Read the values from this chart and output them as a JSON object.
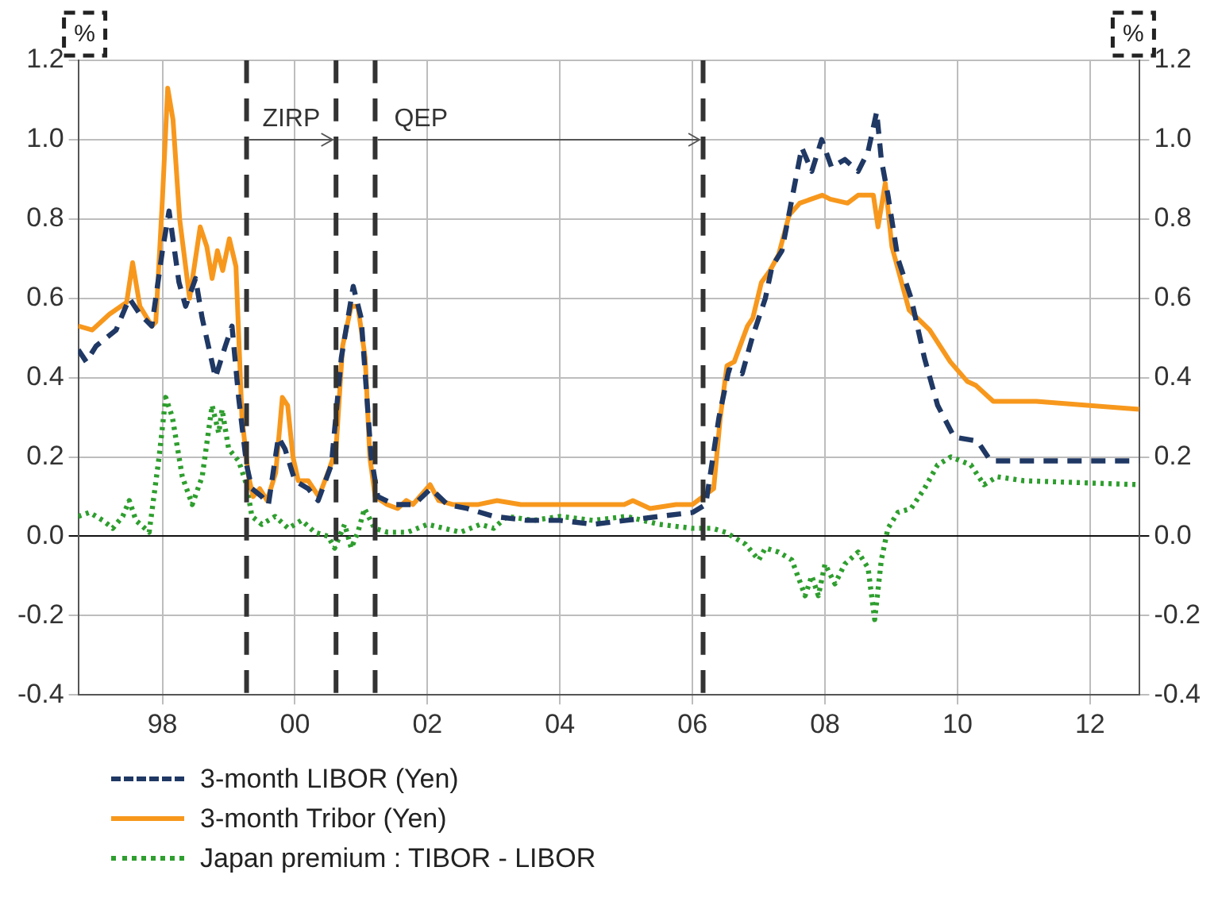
{
  "chart_data": {
    "type": "line",
    "ylabel": "%",
    "y2label": "%",
    "xlim": [
      1996.73,
      2012.75
    ],
    "xticks": [
      {
        "value": 1998,
        "label": "98"
      },
      {
        "value": 2000,
        "label": "00"
      },
      {
        "value": 2002,
        "label": "02"
      },
      {
        "value": 2004,
        "label": "04"
      },
      {
        "value": 2006,
        "label": "06"
      },
      {
        "value": 2008,
        "label": "08"
      },
      {
        "value": 2010,
        "label": "10"
      },
      {
        "value": 2012,
        "label": "12"
      }
    ],
    "ylim": [
      -0.4,
      1.2
    ],
    "yticks": [
      {
        "value": -0.4,
        "label": "-0.4"
      },
      {
        "value": -0.2,
        "label": "-0.2"
      },
      {
        "value": 0,
        "label": "0.0"
      },
      {
        "value": 0.2,
        "label": "0.2"
      },
      {
        "value": 0.4,
        "label": "0.4"
      },
      {
        "value": 0.6,
        "label": "0.6"
      },
      {
        "value": 0.8,
        "label": "0.8"
      },
      {
        "value": 1,
        "label": "1.0"
      },
      {
        "value": 1.2,
        "label": "1.2"
      }
    ],
    "y2lim": [
      -0.4,
      1.2
    ],
    "y2ticks": [
      {
        "value": -0.4,
        "label": "-0.4"
      },
      {
        "value": -0.2,
        "label": "-0.2"
      },
      {
        "value": 0,
        "label": "0.0"
      },
      {
        "value": 0.2,
        "label": "0.2"
      },
      {
        "value": 0.4,
        "label": "0.4"
      },
      {
        "value": 0.6,
        "label": "0.6"
      },
      {
        "value": 0.8,
        "label": "0.8"
      },
      {
        "value": 1,
        "label": "1.0"
      },
      {
        "value": 1.2,
        "label": "1.2"
      }
    ],
    "grid": true,
    "legend": "bottom",
    "marker": "none",
    "ref_lines": [
      {
        "axis": "x",
        "value": 1999.27,
        "color": "#333333",
        "line_style": "dashed"
      },
      {
        "axis": "x",
        "value": 2000.62,
        "color": "#333333",
        "line_style": "dashed"
      },
      {
        "axis": "x",
        "value": 2001.21,
        "color": "#333333",
        "line_style": "dashed"
      },
      {
        "axis": "x",
        "value": 2006.16,
        "color": "#333333",
        "line_style": "dashed"
      }
    ],
    "annotations": [
      {
        "text": "ZIRP",
        "x": 2000.62,
        "y": 1.0
      },
      {
        "text": "QEP",
        "x": 2006.16,
        "y": 1.0
      }
    ],
    "series": [
      {
        "name": "3-month LIBOR (Yen)",
        "color": "#1f3864",
        "line_style": "dashed",
        "x": [
          1996.73,
          1996.85,
          1997.0,
          1997.3,
          1997.5,
          1997.66,
          1997.84,
          1998.0,
          1998.1,
          1998.25,
          1998.35,
          1998.5,
          1998.6,
          1998.8,
          1998.95,
          1999.05,
          1999.15,
          1999.27,
          1999.35,
          1999.5,
          1999.6,
          1999.75,
          1999.85,
          2000.0,
          2000.2,
          2000.35,
          2000.55,
          2000.7,
          2000.88,
          2001.0,
          2001.15,
          2001.25,
          2001.5,
          2001.8,
          2002.05,
          2002.3,
          2002.6,
          2003.0,
          2003.5,
          2004.0,
          2004.5,
          2005.0,
          2005.5,
          2006.0,
          2006.2,
          2006.4,
          2006.55,
          2006.75,
          2006.9,
          2007.1,
          2007.2,
          2007.35,
          2007.5,
          2007.65,
          2007.8,
          2007.95,
          2008.1,
          2008.3,
          2008.5,
          2008.65,
          2008.78,
          2008.85,
          2008.95,
          2009.1,
          2009.3,
          2009.5,
          2009.7,
          2009.95,
          2010.3,
          2010.5,
          2010.7,
          2011.2,
          2012.74
        ],
        "values": [
          0.47,
          0.44,
          0.48,
          0.52,
          0.6,
          0.56,
          0.53,
          0.72,
          0.82,
          0.64,
          0.58,
          0.65,
          0.55,
          0.4,
          0.48,
          0.53,
          0.35,
          0.18,
          0.12,
          0.1,
          0.08,
          0.25,
          0.22,
          0.14,
          0.12,
          0.09,
          0.18,
          0.45,
          0.63,
          0.55,
          0.2,
          0.1,
          0.08,
          0.08,
          0.12,
          0.08,
          0.07,
          0.05,
          0.04,
          0.04,
          0.03,
          0.04,
          0.05,
          0.06,
          0.08,
          0.3,
          0.42,
          0.41,
          0.5,
          0.6,
          0.68,
          0.72,
          0.85,
          0.98,
          0.92,
          1.0,
          0.93,
          0.95,
          0.92,
          0.97,
          1.07,
          0.95,
          0.86,
          0.7,
          0.6,
          0.45,
          0.33,
          0.25,
          0.24,
          0.19,
          0.19,
          0.19,
          0.19
        ]
      },
      {
        "name": "3-month Tribor (Yen)",
        "color": "#f7981d",
        "line_style": "solid",
        "x": [
          1996.73,
          1996.94,
          1997.2,
          1997.46,
          1997.55,
          1997.66,
          1997.84,
          1997.9,
          1998.0,
          1998.08,
          1998.16,
          1998.26,
          1998.41,
          1998.57,
          1998.67,
          1998.75,
          1998.83,
          1998.91,
          1999.01,
          1999.11,
          1999.2,
          1999.3,
          1999.37,
          1999.47,
          1999.58,
          1999.71,
          1999.81,
          1999.89,
          1999.97,
          2000.05,
          2000.2,
          2000.36,
          2000.52,
          2000.62,
          2000.72,
          2000.85,
          2000.95,
          2001.06,
          2001.13,
          2001.21,
          2001.39,
          2001.55,
          2001.68,
          2001.78,
          2002.04,
          2002.17,
          2002.38,
          2002.77,
          2003.05,
          2003.41,
          2003.94,
          2004.45,
          2004.97,
          2005.1,
          2005.36,
          2005.75,
          2006.0,
          2006.16,
          2006.32,
          2006.42,
          2006.52,
          2006.63,
          2006.83,
          2006.91,
          2007.04,
          2007.17,
          2007.3,
          2007.46,
          2007.62,
          2007.96,
          2008.08,
          2008.34,
          2008.5,
          2008.73,
          2008.8,
          2008.91,
          2009.01,
          2009.27,
          2009.58,
          2009.89,
          2010.15,
          2010.28,
          2010.54,
          2011.19,
          2011.96,
          2012.74
        ],
        "values": [
          0.53,
          0.52,
          0.56,
          0.59,
          0.69,
          0.58,
          0.53,
          0.54,
          0.85,
          1.13,
          1.05,
          0.8,
          0.6,
          0.78,
          0.73,
          0.65,
          0.72,
          0.67,
          0.75,
          0.68,
          0.3,
          0.15,
          0.1,
          0.12,
          0.09,
          0.16,
          0.35,
          0.33,
          0.2,
          0.14,
          0.14,
          0.1,
          0.17,
          0.22,
          0.48,
          0.58,
          0.58,
          0.45,
          0.2,
          0.1,
          0.08,
          0.07,
          0.09,
          0.08,
          0.13,
          0.09,
          0.08,
          0.08,
          0.09,
          0.08,
          0.08,
          0.08,
          0.08,
          0.09,
          0.07,
          0.08,
          0.08,
          0.1,
          0.12,
          0.3,
          0.43,
          0.44,
          0.53,
          0.55,
          0.64,
          0.67,
          0.71,
          0.81,
          0.84,
          0.86,
          0.85,
          0.84,
          0.86,
          0.86,
          0.78,
          0.89,
          0.73,
          0.57,
          0.52,
          0.44,
          0.39,
          0.38,
          0.34,
          0.34,
          0.33,
          0.32
        ]
      },
      {
        "name": "Japan premium : TIBOR - LIBOR",
        "color": "#2e9e2e",
        "line_style": "dotted",
        "x": [
          1996.73,
          1996.9,
          1997.1,
          1997.25,
          1997.4,
          1997.5,
          1997.6,
          1997.8,
          1997.95,
          1998.05,
          1998.15,
          1998.3,
          1998.45,
          1998.6,
          1998.75,
          1998.85,
          1998.9,
          1999.0,
          1999.15,
          1999.27,
          1999.35,
          1999.5,
          1999.7,
          1999.9,
          2000.1,
          2000.3,
          2000.5,
          2000.6,
          2000.75,
          2000.85,
          2000.95,
          2001.05,
          2001.2,
          2001.4,
          2001.7,
          2002.0,
          2002.5,
          2002.8,
          2003.0,
          2003.2,
          2003.6,
          2004.0,
          2004.5,
          2005.0,
          2005.5,
          2006.0,
          2006.3,
          2006.5,
          2006.8,
          2007.0,
          2007.1,
          2007.3,
          2007.5,
          2007.7,
          2007.8,
          2007.9,
          2008.0,
          2008.15,
          2008.3,
          2008.5,
          2008.65,
          2008.75,
          2008.85,
          2008.95,
          2009.1,
          2009.3,
          2009.5,
          2009.7,
          2009.9,
          2010.2,
          2010.4,
          2010.6,
          2011.0,
          2012.74
        ],
        "values": [
          0.05,
          0.06,
          0.04,
          0.02,
          0.05,
          0.09,
          0.04,
          0.01,
          0.2,
          0.35,
          0.3,
          0.15,
          0.08,
          0.15,
          0.33,
          0.26,
          0.32,
          0.22,
          0.19,
          0.13,
          0.05,
          0.03,
          0.05,
          0.02,
          0.04,
          0.01,
          0.0,
          -0.03,
          0.03,
          -0.03,
          0.01,
          0.07,
          0.02,
          0.01,
          0.01,
          0.03,
          0.01,
          0.03,
          0.02,
          0.05,
          0.04,
          0.05,
          0.04,
          0.05,
          0.03,
          0.02,
          0.02,
          0.01,
          -0.02,
          -0.06,
          -0.03,
          -0.04,
          -0.06,
          -0.15,
          -0.1,
          -0.15,
          -0.07,
          -0.12,
          -0.07,
          -0.04,
          -0.08,
          -0.21,
          -0.06,
          0.02,
          0.06,
          0.07,
          0.12,
          0.18,
          0.2,
          0.18,
          0.13,
          0.15,
          0.14,
          0.13
        ]
      }
    ]
  }
}
